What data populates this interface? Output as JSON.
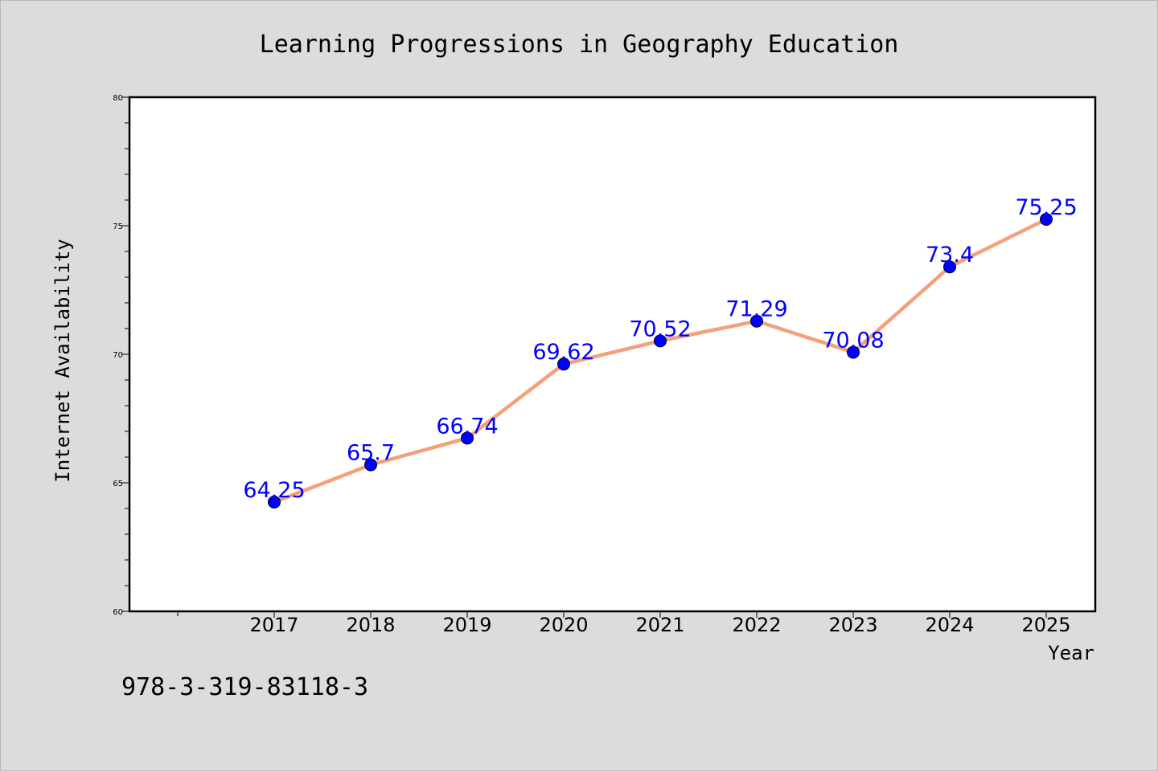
{
  "chart_data": {
    "type": "line",
    "title": "Learning Progressions in Geography Education",
    "xlabel": "Year",
    "ylabel": "Internet Availability",
    "categories": [
      "2017",
      "2018",
      "2019",
      "2020",
      "2021",
      "2022",
      "2023",
      "2024",
      "2025"
    ],
    "series": [
      {
        "values": [
          64.25,
          65.7,
          66.74,
          69.62,
          70.52,
          71.29,
          70.08,
          73.4,
          75.25
        ],
        "data_labels": [
          "64.25",
          "65.7",
          "66.74",
          "69.62",
          "70.52",
          "71.29",
          "70.08",
          "73.4",
          "75.25"
        ],
        "line_color": "#f4a07a",
        "marker_color": "#0000ff"
      }
    ],
    "ylim": [
      60,
      80
    ],
    "y_ticks": [
      60,
      65,
      70,
      75,
      80
    ],
    "y_tick_labels": [
      "60",
      "65",
      "70",
      "75",
      "80"
    ],
    "grid": false,
    "legend": "none",
    "label_color": "#0000ff",
    "footnote": "978-3-319-83118-3"
  }
}
